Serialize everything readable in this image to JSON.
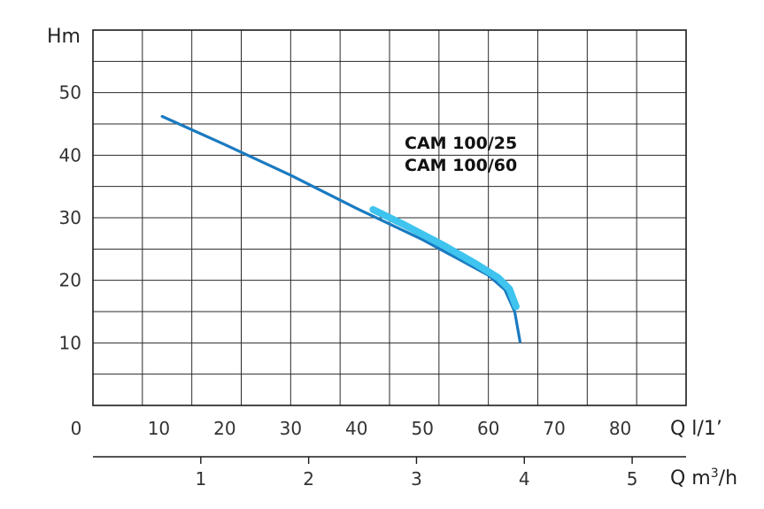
{
  "chart_data": {
    "type": "line",
    "title": "",
    "ylabel": "Hm",
    "xlabel": "Q l/1’",
    "xlabel2_prefix": "Q m",
    "xlabel2_sup": "3",
    "xlabel2_suffix": "/h",
    "xlim": [
      0,
      90
    ],
    "ylim": [
      0,
      60
    ],
    "x2lim": [
      0,
      5.5
    ],
    "grid": true,
    "y_ticks": [
      {
        "v": 10,
        "label": "10"
      },
      {
        "v": 20,
        "label": "20"
      },
      {
        "v": 30,
        "label": "30"
      },
      {
        "v": 40,
        "label": "40"
      },
      {
        "v": 50,
        "label": "50"
      }
    ],
    "x_ticks": [
      {
        "v": 0,
        "label": "0"
      },
      {
        "v": 10,
        "label": "10"
      },
      {
        "v": 20,
        "label": "20"
      },
      {
        "v": 30,
        "label": "30"
      },
      {
        "v": 40,
        "label": "40"
      },
      {
        "v": 50,
        "label": "50"
      },
      {
        "v": 60,
        "label": "60"
      },
      {
        "v": 70,
        "label": "70"
      },
      {
        "v": 80,
        "label": "80"
      }
    ],
    "x2_ticks": [
      {
        "v": 1,
        "label": "1"
      },
      {
        "v": 2,
        "label": "2"
      },
      {
        "v": 3,
        "label": "3"
      },
      {
        "v": 4,
        "label": "4"
      },
      {
        "v": 5,
        "label": "5"
      }
    ],
    "series": [
      {
        "name": "CAM 100/25",
        "color": "#1a7ac0",
        "points": [
          [
            10.5,
            46.2
          ],
          [
            20,
            41.7
          ],
          [
            30,
            36.8
          ],
          [
            40,
            31.5
          ],
          [
            50,
            26.5
          ],
          [
            60,
            20.8
          ],
          [
            62.5,
            18.5
          ],
          [
            64,
            15.0
          ],
          [
            64.8,
            10.2
          ]
        ]
      },
      {
        "name": "CAM 100/60",
        "color": "#3ec4ee",
        "points": [
          [
            42.5,
            31.3
          ],
          [
            47,
            29.0
          ],
          [
            53,
            25.7
          ],
          [
            58,
            22.7
          ],
          [
            61.5,
            20.4
          ],
          [
            63.2,
            18.6
          ],
          [
            64.2,
            15.8
          ]
        ]
      }
    ],
    "labels": [
      "CAM 100/25",
      "CAM 100/60"
    ]
  }
}
